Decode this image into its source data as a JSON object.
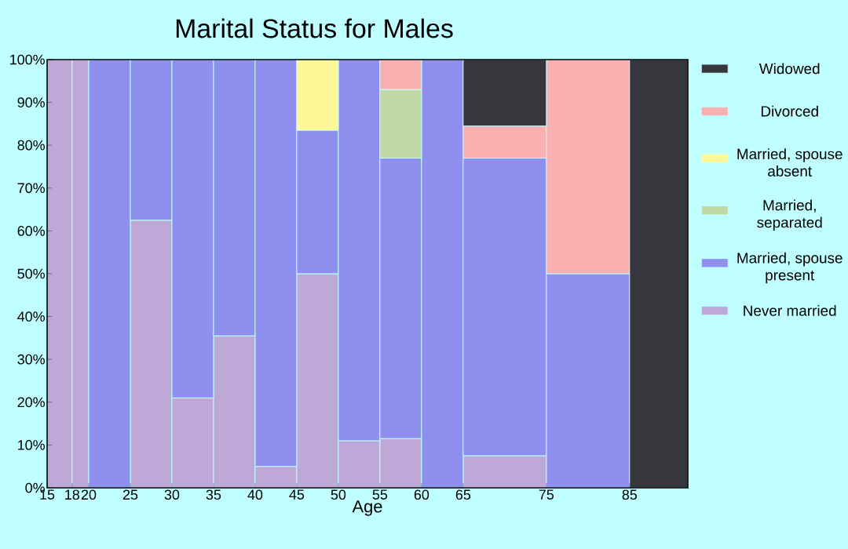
{
  "chart_data": {
    "type": "bar",
    "stacked": true,
    "title": "Marital Status for Males",
    "xlabel": "Age",
    "x": [
      16.5,
      19,
      22.5,
      27.5,
      32.5,
      37.5,
      42.5,
      47.5,
      52.5,
      57.5,
      62.5,
      70,
      80,
      88.5
    ],
    "xlim": [
      15,
      92
    ],
    "xticks": [
      15,
      18,
      20,
      25,
      30,
      35,
      40,
      45,
      50,
      55,
      60,
      65,
      75,
      85
    ],
    "ylim": [
      0,
      100
    ],
    "yticks": [
      {
        "value": 0,
        "label": "0%"
      },
      {
        "value": 10,
        "label": "10%"
      },
      {
        "value": 20,
        "label": "20%"
      },
      {
        "value": 30,
        "label": "30%"
      },
      {
        "value": 40,
        "label": "40%"
      },
      {
        "value": 50,
        "label": "50%"
      },
      {
        "value": 60,
        "label": "60%"
      },
      {
        "value": 70,
        "label": "70%"
      },
      {
        "value": 80,
        "label": "80%"
      },
      {
        "value": 90,
        "label": "90%"
      },
      {
        "value": 100,
        "label": "100%"
      }
    ],
    "legend": "right",
    "series": [
      {
        "name": "Never married",
        "color": "#bea8d8",
        "values": [
          100,
          100,
          0,
          62.5,
          21,
          35.5,
          5,
          50,
          11,
          11.5,
          0,
          7.5,
          0,
          0
        ]
      },
      {
        "name": "Married, spouse present",
        "color": "#8f8ff0",
        "values": [
          0,
          0,
          100,
          37.5,
          79,
          64.5,
          95,
          33.5,
          89,
          65.5,
          100,
          69.5,
          50,
          0
        ]
      },
      {
        "name": "Married, separated",
        "color": "#c2d8a4",
        "values": [
          0,
          0,
          0,
          0,
          0,
          0,
          0,
          0,
          0,
          16,
          0,
          0,
          0,
          0
        ]
      },
      {
        "name": "Married, spouse absent",
        "color": "#fff899",
        "values": [
          0,
          0,
          0,
          0,
          0,
          0,
          0,
          16.5,
          0,
          0,
          0,
          0,
          0,
          0
        ]
      },
      {
        "name": "Divorced",
        "color": "#f8b0b0",
        "values": [
          0,
          0,
          0,
          0,
          0,
          0,
          0,
          0,
          0,
          7,
          0,
          7.5,
          50,
          0
        ]
      },
      {
        "name": "Widowed",
        "color": "#36373c",
        "values": [
          0,
          0,
          0,
          0,
          0,
          0,
          0,
          0,
          0,
          0,
          0,
          15.5,
          0,
          100
        ]
      }
    ]
  }
}
